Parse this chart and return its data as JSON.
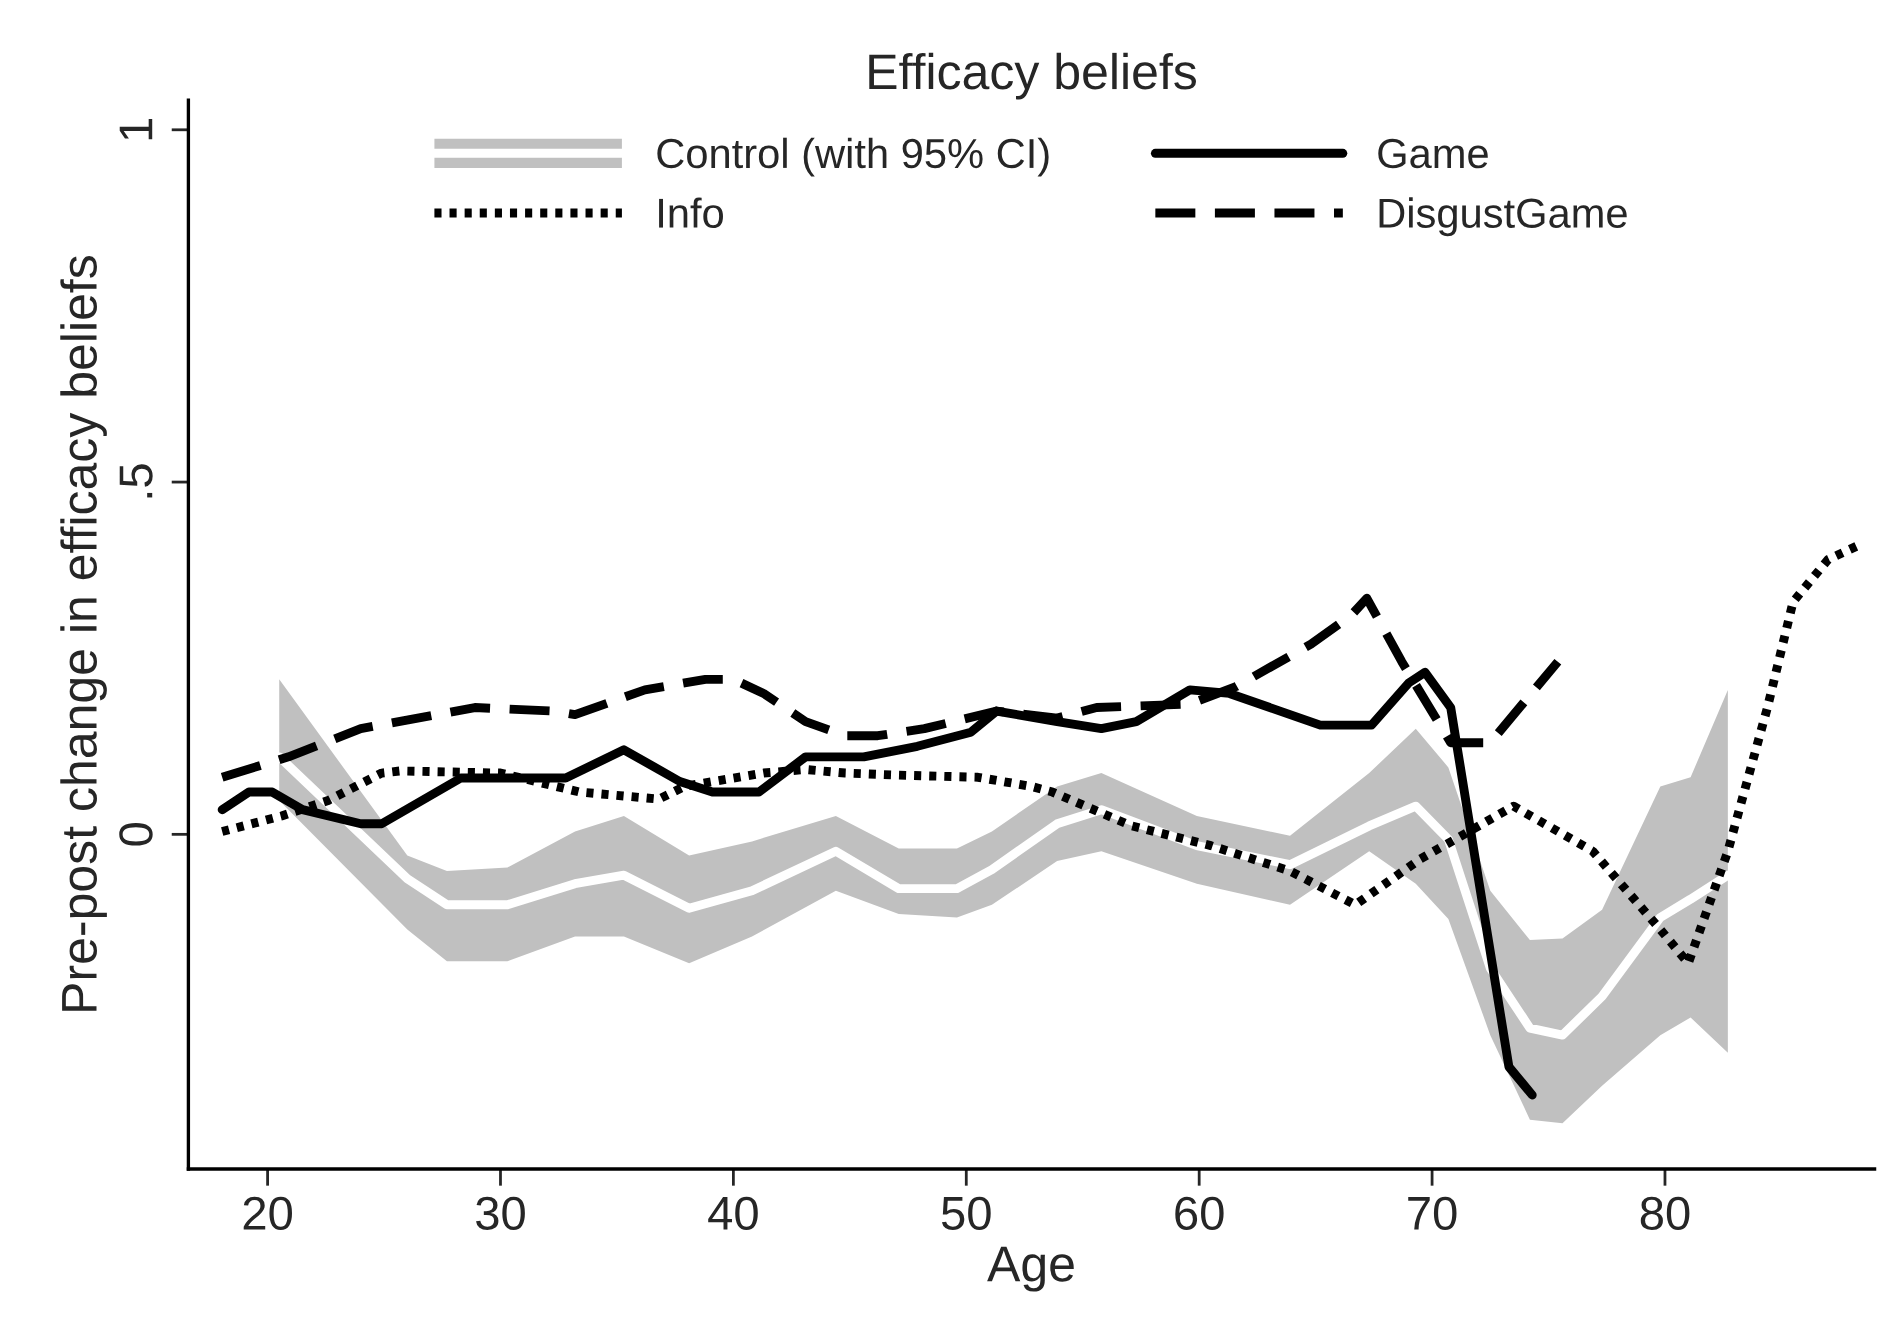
{
  "chart_data": {
    "type": "line",
    "title": "Efficacy beliefs",
    "xlabel": "Age",
    "ylabel": "Pre-post change in efficacy beliefs",
    "xlim": [
      16.6,
      89
    ],
    "xticks": [
      20,
      30,
      40,
      50,
      60,
      70,
      80
    ],
    "ylim": [
      -0.475,
      1.042
    ],
    "yticks": [
      0,
      {
        "value": 0.5,
        "label": ".5"
      },
      1
    ],
    "grid": false,
    "legend": "top",
    "series": [
      {
        "name": "Control (with 95% CI)",
        "color": "#ffffff",
        "line_style": "solid",
        "x": [
          20.5,
          26.0,
          27.7,
          30.3,
          33.2,
          35.3,
          38.1,
          40.8,
          44.4,
          47.1,
          49.6,
          51.1,
          53.9,
          55.8,
          59.9,
          63.9,
          67.3,
          69.3,
          70.7,
          72.5,
          74.2,
          75.6,
          77.3,
          79.8,
          81.1,
          82.7
        ],
        "values": [
          0.11,
          -0.063,
          -0.1,
          -0.1,
          -0.07,
          -0.058,
          -0.105,
          -0.08,
          -0.024,
          -0.077,
          -0.077,
          -0.05,
          0.015,
          0.035,
          -0.016,
          -0.043,
          0.012,
          0.04,
          -0.007,
          -0.19,
          -0.275,
          -0.285,
          -0.23,
          -0.118,
          -0.092,
          -0.058
        ],
        "upper": [
          0.22,
          -0.03,
          -0.052,
          -0.047,
          0.004,
          0.026,
          -0.03,
          -0.01,
          0.026,
          -0.02,
          -0.02,
          0.004,
          0.068,
          0.087,
          0.026,
          -0.002,
          0.087,
          0.15,
          0.095,
          -0.08,
          -0.15,
          -0.148,
          -0.107,
          0.068,
          0.081,
          0.205
        ],
        "lower": [
          0.048,
          -0.135,
          -0.18,
          -0.18,
          -0.145,
          -0.145,
          -0.183,
          -0.145,
          -0.08,
          -0.113,
          -0.118,
          -0.1,
          -0.038,
          -0.024,
          -0.07,
          -0.1,
          -0.024,
          -0.07,
          -0.12,
          -0.285,
          -0.405,
          -0.41,
          -0.357,
          -0.285,
          -0.26,
          -0.31
        ]
      },
      {
        "name": "Info",
        "color": "#000000",
        "line_style": "dotted",
        "x": [
          18.05,
          20.6,
          22.6,
          24.9,
          25.7,
          30.0,
          33.4,
          36.8,
          37.9,
          41.3,
          43.1,
          44.8,
          47.1,
          50.5,
          52.8,
          53.7,
          57.1,
          60.5,
          63.9,
          66.7,
          69.5,
          73.5,
          76.9,
          79.8,
          81.0,
          82.7,
          84.4,
          85.5,
          87.0,
          88.3
        ],
        "values": [
          0.004,
          0.026,
          0.048,
          0.087,
          0.09,
          0.087,
          0.06,
          0.05,
          0.068,
          0.087,
          0.092,
          0.087,
          0.084,
          0.081,
          0.068,
          0.06,
          0.012,
          -0.016,
          -0.052,
          -0.1,
          -0.035,
          0.04,
          -0.024,
          -0.135,
          -0.183,
          -0.024,
          0.18,
          0.33,
          0.39,
          0.41
        ]
      },
      {
        "name": "Game",
        "color": "#000000",
        "line_style": "solid",
        "x": [
          18.05,
          19.2,
          20.2,
          21.5,
          24.0,
          24.9,
          28.3,
          30.0,
          32.8,
          35.3,
          37.7,
          39.1,
          41.1,
          43.1,
          45.6,
          47.9,
          50.2,
          51.3,
          53.9,
          55.8,
          57.3,
          59.6,
          61.3,
          65.2,
          67.4,
          69.0,
          69.7,
          70.8,
          73.3,
          74.3
        ],
        "values": [
          0.035,
          0.06,
          0.06,
          0.035,
          0.015,
          0.015,
          0.08,
          0.08,
          0.08,
          0.12,
          0.075,
          0.06,
          0.06,
          0.11,
          0.11,
          0.125,
          0.145,
          0.175,
          0.16,
          0.15,
          0.16,
          0.205,
          0.2,
          0.155,
          0.155,
          0.215,
          0.23,
          0.18,
          -0.33,
          -0.37
        ]
      },
      {
        "name": "DisgustGame",
        "color": "#000000",
        "line_style": "dashed",
        "x": [
          18.05,
          20.9,
          24.0,
          28.9,
          32.3,
          33.2,
          36.2,
          38.8,
          40.0,
          41.3,
          43.1,
          44.8,
          46.2,
          48.2,
          51.3,
          53.9,
          55.6,
          59.6,
          61.6,
          64.8,
          66.5,
          67.2,
          68.7,
          70.8,
          72.5,
          75.4
        ],
        "values": [
          0.081,
          0.11,
          0.15,
          0.18,
          0.175,
          0.17,
          0.205,
          0.22,
          0.22,
          0.2,
          0.16,
          0.14,
          0.14,
          0.15,
          0.175,
          0.165,
          0.18,
          0.185,
          0.21,
          0.27,
          0.31,
          0.335,
          0.245,
          0.13,
          0.13,
          0.245
        ]
      }
    ]
  }
}
